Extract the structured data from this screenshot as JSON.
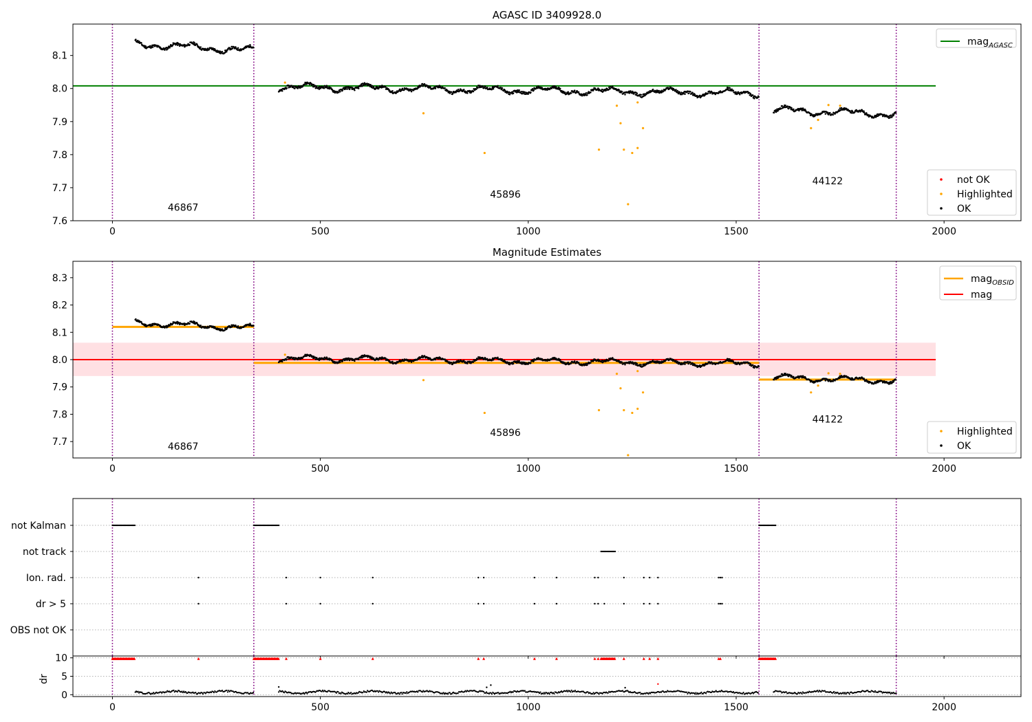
{
  "chart_data": [
    {
      "type": "scatter",
      "title": "AGASC ID 3409928.0",
      "xlim": [
        -95,
        2185
      ],
      "ylim": [
        7.6,
        8.195
      ],
      "xticks": [
        0,
        500,
        1000,
        1500,
        2000
      ],
      "yticks": [
        7.6,
        7.7,
        7.8,
        7.9,
        8.0,
        8.1
      ],
      "ytick_labels": [
        "7.6",
        "7.7",
        "7.8",
        "7.9",
        "8.0",
        "8.1"
      ],
      "obsid_boundaries": [
        0,
        340,
        1555,
        1885
      ],
      "obsid_labels": [
        {
          "text": "46867",
          "x": 170,
          "y": 7.63
        },
        {
          "text": "45896",
          "x": 945,
          "y": 7.67
        },
        {
          "text": "44122",
          "x": 1720,
          "y": 7.71
        }
      ],
      "hline": {
        "name": "mag_AGASC",
        "y": 8.008,
        "x": [
          -95,
          1980
        ],
        "color": "#008000"
      },
      "ok_segments": [
        {
          "x0": 55,
          "x1": 340,
          "y0": 8.135,
          "y1": 8.115
        },
        {
          "x0": 400,
          "x1": 1555,
          "y0": 8.005,
          "y1": 7.985
        },
        {
          "x0": 1590,
          "x1": 1885,
          "y0": 7.935,
          "y1": 7.922
        }
      ],
      "highlighted": [
        [
          415,
          8.018
        ],
        [
          748,
          7.925
        ],
        [
          895,
          7.805
        ],
        [
          1170,
          7.815
        ],
        [
          1213,
          7.948
        ],
        [
          1222,
          7.895
        ],
        [
          1230,
          7.815
        ],
        [
          1240,
          7.65
        ],
        [
          1250,
          7.805
        ],
        [
          1263,
          7.82
        ],
        [
          1263,
          7.958
        ],
        [
          1276,
          7.88
        ],
        [
          1680,
          7.88
        ],
        [
          1697,
          7.905
        ],
        [
          1722,
          7.95
        ],
        [
          1750,
          7.948
        ]
      ],
      "legend_top": {
        "position": "top-right",
        "entries": [
          {
            "label": "mag",
            "sub": "AGASC",
            "color": "#008000"
          }
        ]
      },
      "legend_bottom": {
        "position": "lower-right",
        "entries": [
          {
            "label": "not OK",
            "color": "#ff0000"
          },
          {
            "label": "Highlighted",
            "color": "#ffa500"
          },
          {
            "label": "OK",
            "color": "#000000"
          }
        ]
      }
    },
    {
      "type": "scatter",
      "title": "Magnitude Estimates",
      "xlim": [
        -95,
        2185
      ],
      "ylim": [
        7.64,
        8.36
      ],
      "xticks": [
        0,
        500,
        1000,
        1500,
        2000
      ],
      "yticks": [
        7.7,
        7.8,
        7.9,
        8.0,
        8.1,
        8.2,
        8.3
      ],
      "ytick_labels": [
        "7.7",
        "7.8",
        "7.9",
        "8.0",
        "8.1",
        "8.2",
        "8.3"
      ],
      "obsid_boundaries": [
        0,
        340,
        1555,
        1885
      ],
      "obsid_labels": [
        {
          "text": "46867",
          "x": 170,
          "y": 7.67
        },
        {
          "text": "45896",
          "x": 945,
          "y": 7.72
        },
        {
          "text": "44122",
          "x": 1720,
          "y": 7.77
        }
      ],
      "mag": {
        "y": 8.0,
        "band": [
          7.94,
          8.062
        ],
        "x": [
          -95,
          1980
        ],
        "color": "#ff0000",
        "band_color": "#ffe0e3"
      },
      "mag_obsid": [
        {
          "x0": 0,
          "x1": 340,
          "y": 8.12
        },
        {
          "x0": 340,
          "x1": 1555,
          "y": 7.988
        },
        {
          "x0": 1555,
          "x1": 1885,
          "y": 7.927
        }
      ],
      "highlighted": [
        [
          415,
          8.018
        ],
        [
          748,
          7.925
        ],
        [
          895,
          7.805
        ],
        [
          1170,
          7.815
        ],
        [
          1213,
          7.948
        ],
        [
          1222,
          7.895
        ],
        [
          1230,
          7.815
        ],
        [
          1240,
          7.65
        ],
        [
          1250,
          7.805
        ],
        [
          1263,
          7.82
        ],
        [
          1263,
          7.958
        ],
        [
          1276,
          7.88
        ],
        [
          1680,
          7.88
        ],
        [
          1697,
          7.905
        ],
        [
          1722,
          7.95
        ],
        [
          1750,
          7.948
        ]
      ],
      "legend_top": {
        "position": "top-right",
        "entries": [
          {
            "label": "mag",
            "sub": "OBSID",
            "color": "#ffa500"
          },
          {
            "label": "mag",
            "sub": "",
            "color": "#ff0000"
          }
        ]
      },
      "legend_bottom": {
        "position": "lower-right",
        "entries": [
          {
            "label": "Highlighted",
            "color": "#ffa500"
          },
          {
            "label": "OK",
            "color": "#000000"
          }
        ]
      }
    },
    {
      "type": "scatter",
      "title": "",
      "xlim": [
        -95,
        2185
      ],
      "category_labels": [
        "not Kalman",
        "not track",
        "Ion. rad.",
        "dr > 5",
        "OBS not OK"
      ],
      "obsid_boundaries": [
        0,
        340,
        1555,
        1885
      ],
      "flags": {
        "not Kalman": {
          "ranges": [
            [
              0,
              55
            ],
            [
              340,
              400
            ],
            [
              1555,
              1595
            ]
          ]
        },
        "not track": {
          "ranges": [
            [
              1175,
              1210
            ]
          ]
        },
        "Ion. rad.": {
          "points": [
            207,
            418,
            500,
            626,
            880,
            893,
            1015,
            1068,
            1160,
            1168,
            1230,
            1278,
            1292,
            1312,
            1458,
            1462,
            1466
          ]
        },
        "dr > 5": {
          "points": [
            207,
            418,
            500,
            626,
            880,
            893,
            1015,
            1068,
            1160,
            1168,
            1183,
            1230,
            1278,
            1292,
            1312,
            1458,
            1462,
            1466
          ]
        },
        "OBS not OK": {
          "points": []
        }
      }
    },
    {
      "type": "scatter",
      "title": "",
      "ylabel": "dr",
      "xlim": [
        -95,
        2185
      ],
      "ylim": [
        -0.5,
        10.5
      ],
      "xticks": [
        0,
        500,
        1000,
        1500,
        2000
      ],
      "yticks": [
        0,
        5,
        10
      ],
      "ytick_labels": [
        "0",
        "5",
        "10"
      ],
      "obsid_boundaries": [
        0,
        340,
        1555,
        1885
      ],
      "clipped_ranges": [
        [
          0,
          55
        ],
        [
          340,
          400
        ],
        [
          1175,
          1210
        ],
        [
          1555,
          1595
        ]
      ],
      "clipped_points": [
        207,
        418,
        500,
        626,
        880,
        893,
        1015,
        1068,
        1160,
        1168,
        1230,
        1278,
        1292,
        1312,
        1458,
        1462
      ],
      "ok_segments": [
        [
          55,
          340
        ],
        [
          400,
          1555
        ],
        [
          1590,
          1885
        ]
      ],
      "outliers": [
        [
          400,
          2.1
        ],
        [
          900,
          2.0
        ],
        [
          910,
          2.6
        ],
        [
          1233,
          1.9
        ],
        [
          1312,
          2.9
        ]
      ]
    }
  ]
}
